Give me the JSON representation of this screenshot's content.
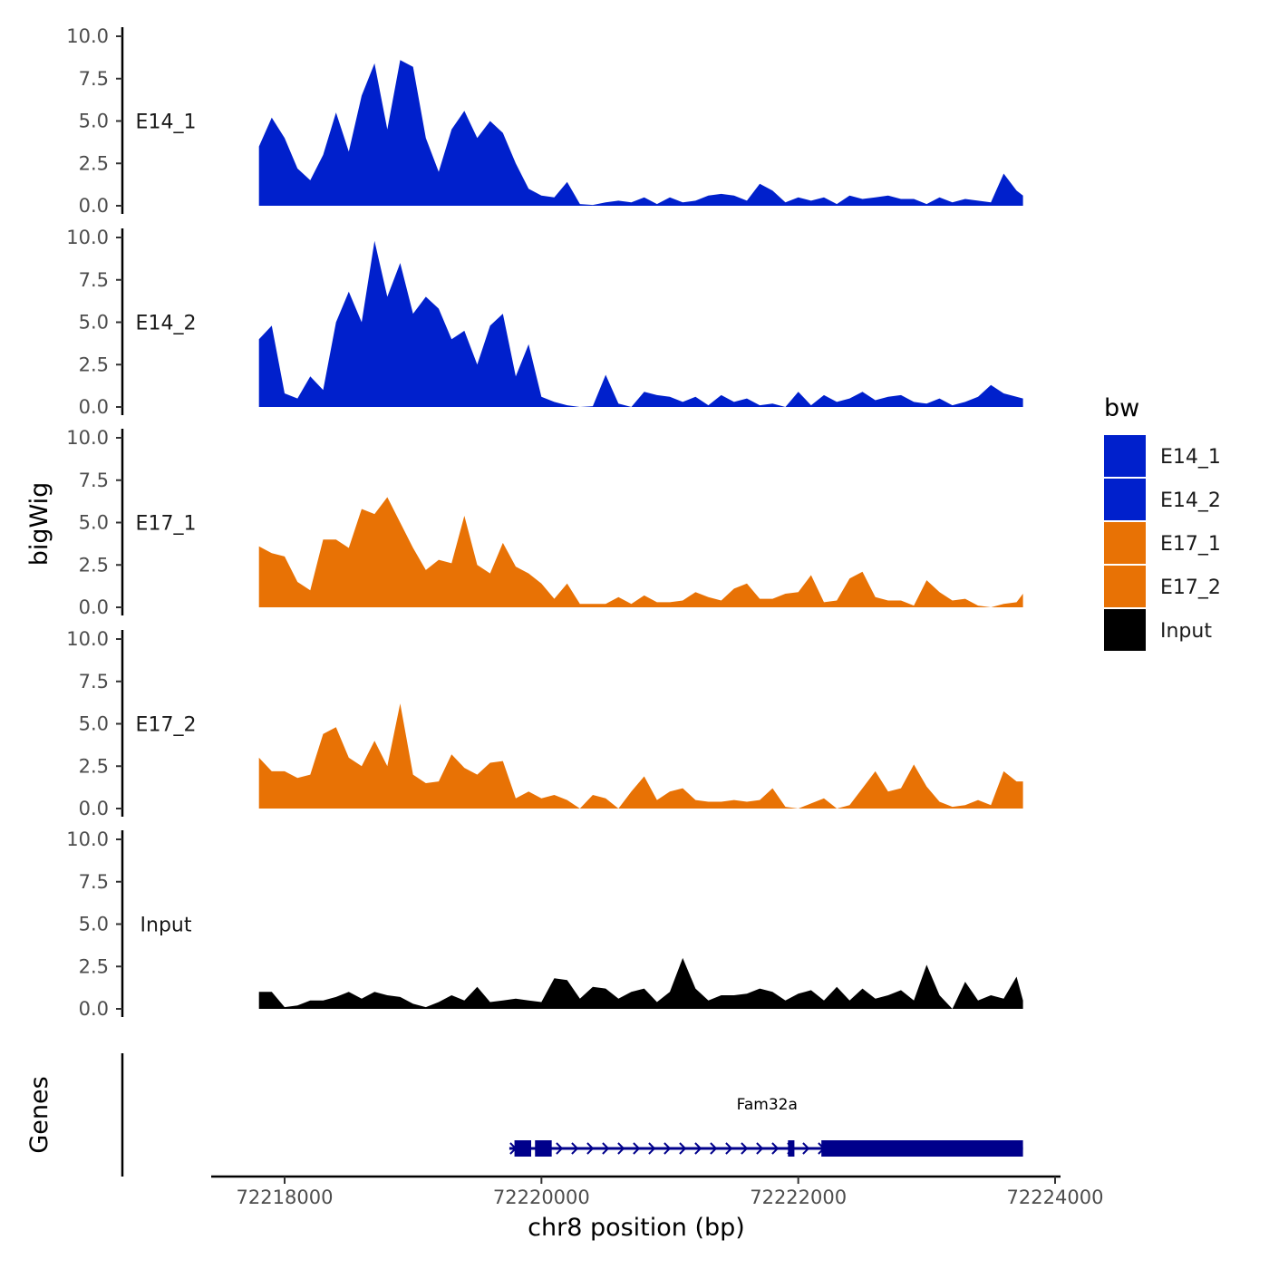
{
  "chart_data": {
    "type": "area",
    "ylabel": "bigWig",
    "xlabel": "chr8 position (bp)",
    "gene_panel_label": "Genes",
    "ylim": [
      0,
      10
    ],
    "y_ticks": [
      "10.0",
      "7.5",
      "5.0",
      "2.5",
      "0.0"
    ],
    "x_ticks": [
      {
        "value": 72218000,
        "label": "72218000"
      },
      {
        "value": 72220000,
        "label": "72220000"
      },
      {
        "value": 72222000,
        "label": "72222000"
      },
      {
        "value": 72224000,
        "label": "72224000"
      }
    ],
    "legend": {
      "title": "bw",
      "entries": [
        {
          "name": "E14_1",
          "color": "#0020CC"
        },
        {
          "name": "E14_2",
          "color": "#0020CC"
        },
        {
          "name": "E17_1",
          "color": "#E87205"
        },
        {
          "name": "E17_2",
          "color": "#E87205"
        },
        {
          "name": "Input",
          "color": "#000000"
        }
      ]
    },
    "x_data": [
      72217800,
      72217900,
      72218000,
      72218100,
      72218200,
      72218300,
      72218400,
      72218500,
      72218600,
      72218700,
      72218800,
      72218900,
      72219000,
      72219100,
      72219200,
      72219300,
      72219400,
      72219500,
      72219600,
      72219700,
      72219800,
      72219900,
      72220000,
      72220100,
      72220200,
      72220300,
      72220400,
      72220500,
      72220600,
      72220700,
      72220800,
      72220900,
      72221000,
      72221100,
      72221200,
      72221300,
      72221400,
      72221500,
      72221600,
      72221700,
      72221800,
      72221900,
      72222000,
      72222100,
      72222200,
      72222300,
      72222400,
      72222500,
      72222600,
      72222700,
      72222800,
      72222900,
      72223000,
      72223100,
      72223200,
      72223300,
      72223400,
      72223500,
      72223600,
      72223700,
      72223750
    ],
    "series": [
      {
        "name": "E14_1",
        "color": "#0020CC",
        "values": [
          3.5,
          5.2,
          4.0,
          2.2,
          1.5,
          3.0,
          5.5,
          3.2,
          6.5,
          8.4,
          4.5,
          8.6,
          8.2,
          4.0,
          2.0,
          4.5,
          5.6,
          4.0,
          5.0,
          4.3,
          2.5,
          1.0,
          0.6,
          0.5,
          1.4,
          0.1,
          0.05,
          0.2,
          0.3,
          0.2,
          0.5,
          0.1,
          0.5,
          0.2,
          0.3,
          0.6,
          0.7,
          0.6,
          0.3,
          1.3,
          0.9,
          0.2,
          0.5,
          0.3,
          0.5,
          0.1,
          0.6,
          0.4,
          0.5,
          0.6,
          0.4,
          0.4,
          0.1,
          0.5,
          0.2,
          0.4,
          0.3,
          0.2,
          1.9,
          0.9,
          0.6
        ]
      },
      {
        "name": "E14_2",
        "color": "#0020CC",
        "values": [
          4.0,
          4.8,
          0.8,
          0.5,
          1.8,
          1.0,
          5.0,
          6.8,
          5.0,
          9.8,
          6.5,
          8.5,
          5.5,
          6.5,
          5.8,
          4.0,
          4.5,
          2.5,
          4.8,
          5.5,
          1.8,
          3.7,
          0.6,
          0.3,
          0.1,
          0.0,
          0.05,
          1.9,
          0.2,
          0.0,
          0.9,
          0.7,
          0.6,
          0.3,
          0.6,
          0.1,
          0.7,
          0.3,
          0.5,
          0.1,
          0.2,
          0.0,
          0.9,
          0.1,
          0.7,
          0.3,
          0.5,
          0.9,
          0.4,
          0.6,
          0.7,
          0.3,
          0.2,
          0.5,
          0.1,
          0.3,
          0.6,
          1.3,
          0.8,
          0.6,
          0.5
        ]
      },
      {
        "name": "E17_1",
        "color": "#E87205",
        "values": [
          3.6,
          3.2,
          3.0,
          1.5,
          1.0,
          4.0,
          4.0,
          3.5,
          5.8,
          5.5,
          6.5,
          5.0,
          3.5,
          2.2,
          2.8,
          2.6,
          5.4,
          2.5,
          2.0,
          3.8,
          2.4,
          2.0,
          1.4,
          0.5,
          1.4,
          0.2,
          0.2,
          0.2,
          0.6,
          0.2,
          0.7,
          0.3,
          0.3,
          0.4,
          0.9,
          0.6,
          0.4,
          1.1,
          1.4,
          0.5,
          0.5,
          0.8,
          0.9,
          1.9,
          0.3,
          0.4,
          1.7,
          2.1,
          0.6,
          0.4,
          0.4,
          0.1,
          1.6,
          0.9,
          0.4,
          0.5,
          0.1,
          0.0,
          0.2,
          0.3,
          0.8
        ]
      },
      {
        "name": "E17_2",
        "color": "#E87205",
        "values": [
          3.0,
          2.2,
          2.2,
          1.8,
          2.0,
          4.4,
          4.8,
          3.0,
          2.5,
          4.0,
          2.5,
          6.2,
          2.0,
          1.5,
          1.6,
          3.2,
          2.4,
          2.0,
          2.7,
          2.8,
          0.6,
          1.0,
          0.6,
          0.8,
          0.5,
          0.0,
          0.8,
          0.6,
          0.0,
          1.0,
          1.9,
          0.5,
          1.0,
          1.2,
          0.5,
          0.4,
          0.4,
          0.5,
          0.4,
          0.5,
          1.2,
          0.1,
          0.0,
          0.3,
          0.6,
          0.0,
          0.2,
          1.2,
          2.2,
          1.0,
          1.2,
          2.6,
          1.3,
          0.4,
          0.1,
          0.2,
          0.5,
          0.2,
          2.2,
          1.6,
          1.6
        ]
      },
      {
        "name": "Input",
        "color": "#000000",
        "values": [
          1.0,
          1.0,
          0.1,
          0.2,
          0.5,
          0.5,
          0.7,
          1.0,
          0.6,
          1.0,
          0.8,
          0.7,
          0.3,
          0.1,
          0.4,
          0.8,
          0.5,
          1.3,
          0.4,
          0.5,
          0.6,
          0.5,
          0.4,
          1.8,
          1.7,
          0.6,
          1.3,
          1.2,
          0.6,
          1.0,
          1.2,
          0.4,
          1.0,
          3.0,
          1.2,
          0.5,
          0.8,
          0.8,
          0.9,
          1.2,
          1.0,
          0.5,
          0.9,
          1.1,
          0.5,
          1.3,
          0.5,
          1.2,
          0.6,
          0.8,
          1.1,
          0.5,
          2.6,
          0.8,
          0.0,
          1.6,
          0.5,
          0.8,
          0.6,
          1.9,
          0.5
        ]
      }
    ],
    "gene": {
      "name": "Fam32a",
      "start": 72219750,
      "end": 72223750,
      "strand": "+",
      "exons": [
        [
          72219790,
          72219920
        ],
        [
          72219950,
          72220080
        ],
        [
          72221920,
          72221970
        ],
        [
          72222180,
          72223750
        ]
      ]
    }
  }
}
